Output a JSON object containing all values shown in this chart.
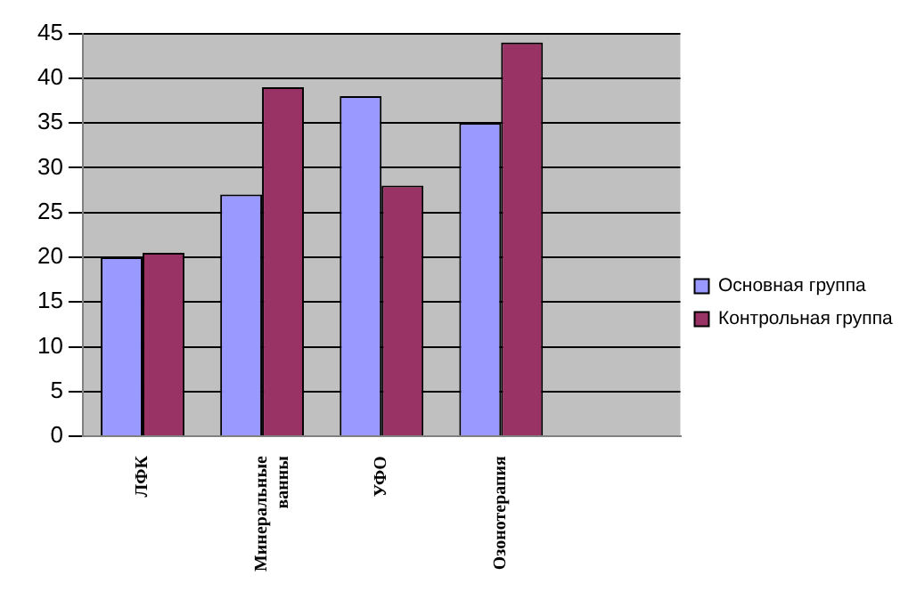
{
  "chart_data": {
    "type": "bar",
    "categories": [
      "ЛФК",
      "Минеральные ванны",
      "УФО",
      "Озонотерапия",
      null
    ],
    "series": [
      {
        "name": "Основная группа",
        "color": "#9999ff",
        "values": [
          20,
          27,
          38,
          35,
          null
        ]
      },
      {
        "name": "Контрольная группа",
        "color": "#993366",
        "values": [
          20.5,
          39,
          28,
          44,
          null
        ]
      }
    ],
    "ylim": [
      0,
      45
    ],
    "yticks": [
      0,
      5,
      10,
      15,
      20,
      25,
      30,
      35,
      40,
      45
    ],
    "grid": "y",
    "legend": "right"
  }
}
